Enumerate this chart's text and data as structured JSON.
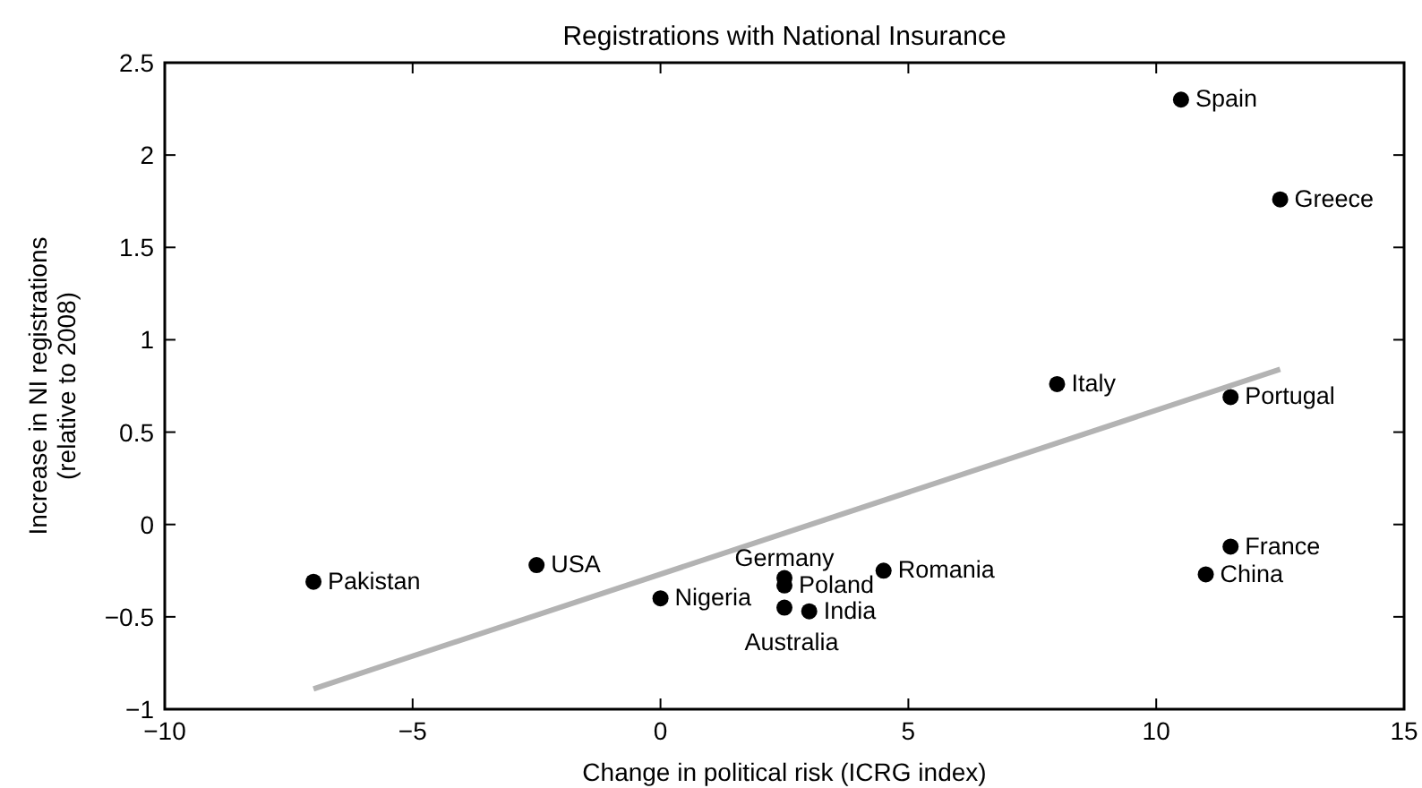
{
  "chart_data": {
    "type": "scatter",
    "title": "Registrations with National Insurance",
    "xlabel": "Change in political risk (ICRG index)",
    "ylabel": "Increase in NI registrations\n(relative to 2008)",
    "xlim": [
      -10,
      15
    ],
    "xticks": [
      -10,
      -5,
      0,
      5,
      10,
      15
    ],
    "ylim": [
      -1,
      2.5
    ],
    "yticks": [
      -1,
      -0.5,
      0,
      0.5,
      1,
      1.5,
      2,
      2.5
    ],
    "grid": false,
    "marker": "circle",
    "series": [
      {
        "type": "scatter",
        "color": "#000000",
        "x": [
          -7,
          -2.5,
          0,
          2.5,
          2.5,
          2.5,
          3,
          4.5,
          8,
          10.5,
          12.5,
          11.5,
          11.5,
          11
        ],
        "values": [
          -0.31,
          -0.22,
          -0.4,
          -0.29,
          -0.33,
          -0.45,
          -0.47,
          -0.25,
          0.76,
          2.3,
          1.76,
          0.69,
          -0.12,
          -0.27
        ]
      },
      {
        "type": "line",
        "color": "#b3b3b3",
        "line_style": "solid",
        "marker": "none",
        "x": [
          -7,
          12.5
        ],
        "values": [
          -0.89,
          0.84
        ]
      }
    ],
    "annotations": [
      {
        "text": "Pakistan",
        "x": -7,
        "y": -0.31
      },
      {
        "text": "USA",
        "x": -2.5,
        "y": -0.22
      },
      {
        "text": "Nigeria",
        "x": 0,
        "y": -0.4
      },
      {
        "text": "Poland",
        "x": 2.5,
        "y": -0.33
      },
      {
        "text": "India",
        "x": 3,
        "y": -0.47
      },
      {
        "text": "Germany",
        "x": 2.5,
        "y": -0.29
      },
      {
        "text": "Australia",
        "x": 2.5,
        "y": -0.45
      },
      {
        "text": "Romania",
        "x": 4.5,
        "y": -0.25
      },
      {
        "text": "Italy",
        "x": 8,
        "y": 0.76
      },
      {
        "text": "Spain",
        "x": 10.5,
        "y": 2.3
      },
      {
        "text": "Greece",
        "x": 12.5,
        "y": 1.76
      },
      {
        "text": "Portugal",
        "x": 11.5,
        "y": 0.69
      },
      {
        "text": "France",
        "x": 11.5,
        "y": -0.12
      },
      {
        "text": "China",
        "x": 11,
        "y": -0.27
      }
    ]
  }
}
